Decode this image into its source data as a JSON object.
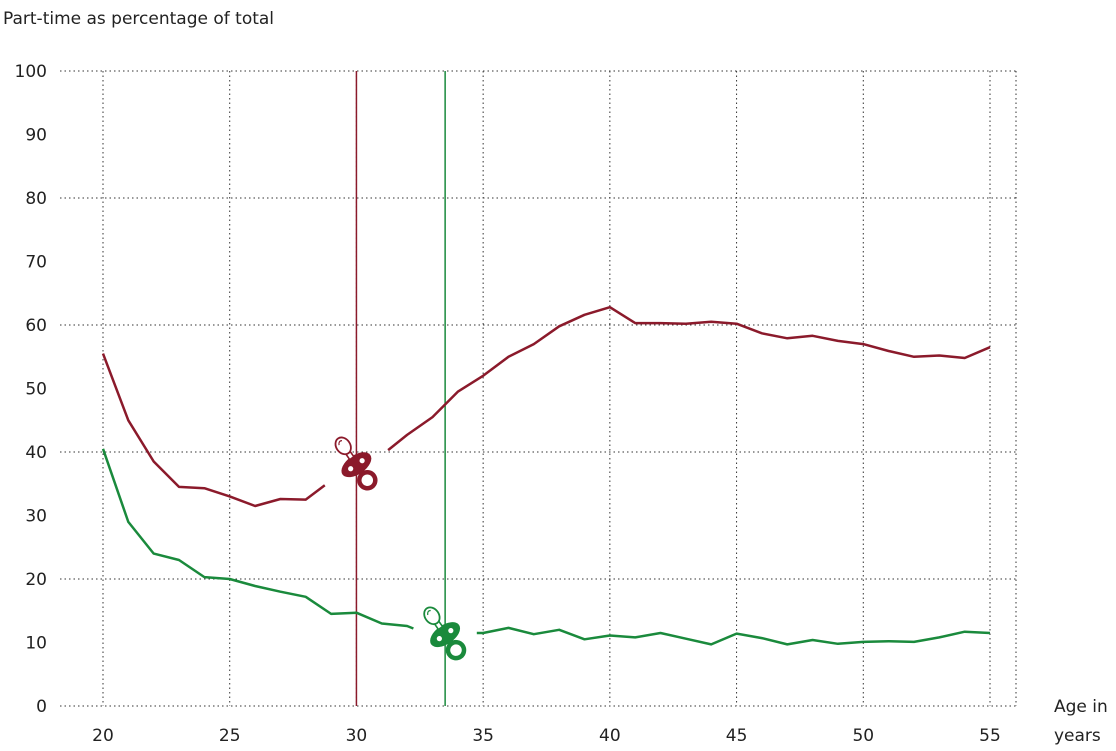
{
  "chart_data": {
    "type": "line",
    "title": "",
    "ylabel": "Part-time as percentage of total",
    "xlabel": "Age in years",
    "xlabel_lines": [
      "Age in",
      "years"
    ],
    "xlim": [
      20,
      55
    ],
    "ylim": [
      0,
      100
    ],
    "xticks": [
      20,
      25,
      30,
      35,
      40,
      45,
      50,
      55
    ],
    "yticks": [
      0,
      10,
      20,
      30,
      40,
      50,
      60,
      70,
      80,
      90,
      100
    ],
    "grid": true,
    "x": [
      20,
      21,
      22,
      23,
      24,
      25,
      26,
      27,
      28,
      29,
      30,
      31,
      32,
      33,
      34,
      35,
      36,
      37,
      38,
      39,
      40,
      41,
      42,
      43,
      44,
      45,
      46,
      47,
      48,
      49,
      50,
      51,
      52,
      53,
      54,
      55
    ],
    "series": [
      {
        "color": "#8b1a2b",
        "values": [
          55.5,
          45,
          38.5,
          34.5,
          34.3,
          33,
          31.5,
          32.6,
          32.5,
          35.5,
          38,
          39.5,
          42.7,
          45.5,
          49.5,
          52,
          55,
          57,
          59.8,
          61.6,
          62.8,
          60.3,
          60.3,
          60.2,
          60.5,
          60.2,
          58.7,
          57.9,
          58.3,
          57.5,
          57,
          55.9,
          55,
          55.2,
          54.8,
          56.5
        ]
      },
      {
        "color": "#1a8a3c",
        "values": [
          40.5,
          29,
          24,
          23,
          20.3,
          20,
          18.9,
          18,
          17.2,
          14.5,
          14.7,
          13,
          12.6,
          11,
          11.5,
          11.5,
          12.3,
          11.3,
          12,
          10.5,
          11.1,
          10.8,
          11.5,
          10.6,
          9.7,
          11.4,
          10.7,
          9.7,
          10.4,
          9.8,
          10.1,
          10.2,
          10.1,
          10.8,
          11.7,
          11.5
        ]
      }
    ],
    "markers": [
      {
        "x": 30,
        "series": 0,
        "color": "#8b1a2b",
        "icon": "pacifier-icon"
      },
      {
        "x": 33.5,
        "series": 1,
        "color": "#1a8a3c",
        "icon": "pacifier-icon"
      }
    ]
  }
}
